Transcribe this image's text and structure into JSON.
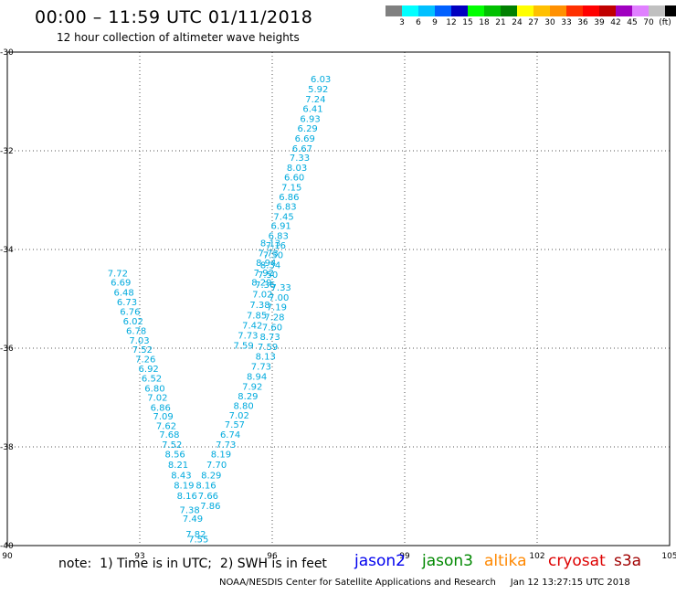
{
  "header": {
    "title": "00:00 – 11:59 UTC 01/11/2018",
    "subtitle": "12 hour collection of altimeter wave heights"
  },
  "colorbar": {
    "colors": [
      "#808080",
      "#00ffff",
      "#00c0ff",
      "#0060ff",
      "#0000c0",
      "#00ff00",
      "#00c000",
      "#008000",
      "#ffff00",
      "#ffc000",
      "#ff9000",
      "#ff3000",
      "#ff0000",
      "#c00000",
      "#a000c0",
      "#e080ff",
      "#c0c0c0",
      "#000000"
    ],
    "labels": [
      "3",
      "6",
      "9",
      "12",
      "15",
      "18",
      "21",
      "24",
      "27",
      "30",
      "33",
      "36",
      "39",
      "42",
      "45",
      "70",
      "(ft)"
    ]
  },
  "legend": {
    "note": "note:  1) Time is in UTC;  2) SWH is in feet",
    "satellites": [
      {
        "name": "jason2",
        "color": "#0000ee"
      },
      {
        "name": "jason3",
        "color": "#008800"
      },
      {
        "name": "altika",
        "color": "#ff8800"
      },
      {
        "name": "cryosat",
        "color": "#dd0000"
      },
      {
        "name": "s3a",
        "color": "#a00000"
      }
    ],
    "credit": "NOAA/NESDIS Center for Satellite Applications and Research     Jan 12 13:27:15 UTC 2018"
  },
  "chart_data": {
    "type": "scatter",
    "title": "00:00 – 11:59 UTC 01/11/2018",
    "subtitle": "12 hour collection of altimeter wave heights",
    "xlim": [
      90,
      105
    ],
    "ylim": [
      -40,
      -30
    ],
    "xticks": [
      "90",
      "93",
      "96",
      "99",
      "102",
      "105"
    ],
    "yticks": [
      "-30",
      "-32",
      "-34",
      "-36",
      "-38",
      "-40"
    ],
    "grid": true,
    "tracks": [
      {
        "satellite": "s3a",
        "color": "#880000",
        "value_color": "#00aadd",
        "points": [
          {
            "x": 94.33,
            "y": -39.88,
            "v": "7.55"
          },
          {
            "x": 94.27,
            "y": -39.78,
            "v": "7.82"
          },
          {
            "x": 94.2,
            "y": -39.46,
            "v": "7.49"
          },
          {
            "x": 94.13,
            "y": -39.29,
            "v": "7.38"
          },
          {
            "x": 94.07,
            "y": -39.0,
            "v": "8.16"
          },
          {
            "x": 94.0,
            "y": -38.79,
            "v": "8.19"
          },
          {
            "x": 93.94,
            "y": -38.58,
            "v": "8.43"
          },
          {
            "x": 93.87,
            "y": -38.37,
            "v": "8.21"
          },
          {
            "x": 93.8,
            "y": -38.16,
            "v": "8.56"
          },
          {
            "x": 93.73,
            "y": -37.96,
            "v": "7.52"
          },
          {
            "x": 93.67,
            "y": -37.76,
            "v": "7.68"
          },
          {
            "x": 93.6,
            "y": -37.58,
            "v": "7.62"
          },
          {
            "x": 93.53,
            "y": -37.39,
            "v": "7.09"
          },
          {
            "x": 93.47,
            "y": -37.21,
            "v": "6.86"
          },
          {
            "x": 93.4,
            "y": -37.01,
            "v": "7.02"
          },
          {
            "x": 93.34,
            "y": -36.82,
            "v": "6.80"
          },
          {
            "x": 93.27,
            "y": -36.62,
            "v": "6.52"
          },
          {
            "x": 93.2,
            "y": -36.43,
            "v": "6.92"
          },
          {
            "x": 93.13,
            "y": -36.23,
            "v": "7.26"
          },
          {
            "x": 93.06,
            "y": -36.04,
            "v": "7.52"
          },
          {
            "x": 92.99,
            "y": -35.85,
            "v": "7.03"
          },
          {
            "x": 92.92,
            "y": -35.66,
            "v": "6.78"
          },
          {
            "x": 92.85,
            "y": -35.46,
            "v": "6.02"
          },
          {
            "x": 92.78,
            "y": -35.27,
            "v": "6.76"
          },
          {
            "x": 92.71,
            "y": -35.07,
            "v": "6.73"
          },
          {
            "x": 92.64,
            "y": -34.88,
            "v": "6.48"
          },
          {
            "x": 92.57,
            "y": -34.68,
            "v": "6.69"
          },
          {
            "x": 92.5,
            "y": -34.49,
            "v": "7.72"
          }
        ]
      },
      {
        "satellite": "s3a",
        "color": "#880000",
        "value_color": "#00aadd",
        "points": [
          {
            "x": 94.6,
            "y": -39.2,
            "v": "7.86"
          },
          {
            "x": 94.55,
            "y": -39.0,
            "v": "7.66"
          },
          {
            "x": 94.5,
            "y": -38.79,
            "v": "8.16"
          },
          {
            "x": 94.62,
            "y": -38.58,
            "v": "8.29"
          },
          {
            "x": 94.74,
            "y": -38.37,
            "v": "7.70"
          },
          {
            "x": 94.84,
            "y": -38.16,
            "v": "8.19"
          },
          {
            "x": 94.95,
            "y": -37.96,
            "v": "7.73"
          },
          {
            "x": 95.05,
            "y": -37.76,
            "v": "6.74"
          },
          {
            "x": 95.15,
            "y": -37.56,
            "v": "7.57"
          },
          {
            "x": 95.25,
            "y": -37.37,
            "v": "7.02"
          },
          {
            "x": 95.35,
            "y": -37.18,
            "v": "8.80"
          },
          {
            "x": 95.45,
            "y": -36.98,
            "v": "8.29"
          },
          {
            "x": 95.55,
            "y": -36.79,
            "v": "7.92"
          },
          {
            "x": 95.65,
            "y": -36.58,
            "v": "8.94"
          },
          {
            "x": 95.75,
            "y": -36.38,
            "v": "7.73"
          },
          {
            "x": 95.85,
            "y": -36.18,
            "v": "8.13"
          },
          {
            "x": 95.9,
            "y": -35.98,
            "v": "7.59"
          },
          {
            "x": 95.95,
            "y": -35.78,
            "v": "8.73"
          },
          {
            "x": 96.0,
            "y": -35.58,
            "v": "7.60"
          },
          {
            "x": 96.05,
            "y": -35.38,
            "v": "7.28"
          },
          {
            "x": 96.1,
            "y": -35.18,
            "v": "7.19"
          },
          {
            "x": 96.15,
            "y": -34.98,
            "v": "7.00"
          },
          {
            "x": 96.2,
            "y": -34.78,
            "v": "7.33"
          }
        ]
      },
      {
        "satellite": "s3a",
        "color": "#880000",
        "value_color": "#00aadd",
        "points": [
          {
            "x": 95.76,
            "y": -34.68,
            "v": "8.29"
          },
          {
            "x": 95.81,
            "y": -34.48,
            "v": "7.92"
          },
          {
            "x": 95.86,
            "y": -34.28,
            "v": "8.94"
          },
          {
            "x": 95.91,
            "y": -34.08,
            "v": "7.73"
          },
          {
            "x": 95.96,
            "y": -33.88,
            "v": "8.13"
          }
        ]
      },
      {
        "satellite": "s3a",
        "color": "#880000",
        "value_color": "#00aadd",
        "points": [
          {
            "x": 95.35,
            "y": -35.95,
            "v": "7.59"
          },
          {
            "x": 95.45,
            "y": -35.75,
            "v": "7.73"
          },
          {
            "x": 95.55,
            "y": -35.55,
            "v": "7.42"
          },
          {
            "x": 95.65,
            "y": -35.34,
            "v": "7.85"
          },
          {
            "x": 95.72,
            "y": -35.13,
            "v": "7.38"
          },
          {
            "x": 95.78,
            "y": -34.92,
            "v": "7.02"
          },
          {
            "x": 95.84,
            "y": -34.72,
            "v": "7.36"
          },
          {
            "x": 95.9,
            "y": -34.52,
            "v": "7.50"
          },
          {
            "x": 95.96,
            "y": -34.32,
            "v": "8.34"
          },
          {
            "x": 96.02,
            "y": -34.12,
            "v": "7.50"
          },
          {
            "x": 96.08,
            "y": -33.93,
            "v": "7.16"
          },
          {
            "x": 96.14,
            "y": -33.73,
            "v": "6.83"
          },
          {
            "x": 96.2,
            "y": -33.53,
            "v": "6.91"
          },
          {
            "x": 96.26,
            "y": -33.34,
            "v": "7.45"
          },
          {
            "x": 96.32,
            "y": -33.14,
            "v": "6.83"
          },
          {
            "x": 96.38,
            "y": -32.94,
            "v": "6.86"
          },
          {
            "x": 96.44,
            "y": -32.75,
            "v": "7.15"
          },
          {
            "x": 96.5,
            "y": -32.55,
            "v": "6.60"
          },
          {
            "x": 96.56,
            "y": -32.35,
            "v": "8.03"
          },
          {
            "x": 96.62,
            "y": -32.15,
            "v": "7.33"
          },
          {
            "x": 96.68,
            "y": -31.96,
            "v": "6.67"
          },
          {
            "x": 96.74,
            "y": -31.76,
            "v": "6.69"
          },
          {
            "x": 96.8,
            "y": -31.56,
            "v": "6.29"
          },
          {
            "x": 96.86,
            "y": -31.36,
            "v": "6.93"
          },
          {
            "x": 96.92,
            "y": -31.16,
            "v": "6.41"
          },
          {
            "x": 96.98,
            "y": -30.96,
            "v": "7.24"
          },
          {
            "x": 97.04,
            "y": -30.76,
            "v": "5.92"
          },
          {
            "x": 97.1,
            "y": -30.56,
            "v": "6.03"
          }
        ]
      }
    ]
  }
}
